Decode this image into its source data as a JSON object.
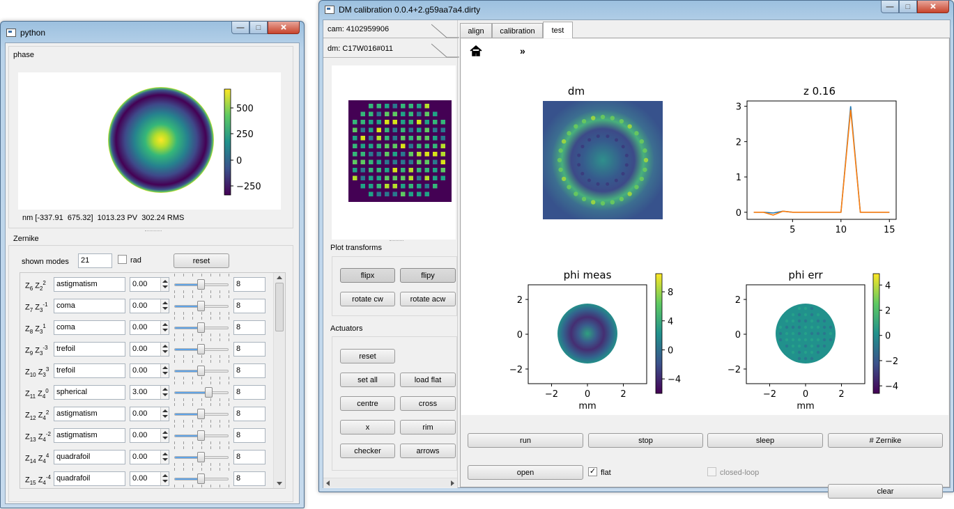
{
  "python_window": {
    "title": "python",
    "phase_group_label": "phase",
    "colorbar_ticks": [
      "500",
      "250",
      "0",
      "−250"
    ],
    "stats_text": "nm [-337.91  675.32]  1013.23 PV  302.24 RMS",
    "zernike_group_label": "Zernike",
    "shown_modes_label": "shown modes",
    "shown_modes_value": "21",
    "rad_label": "rad",
    "reset_label": "reset",
    "modes": [
      {
        "z": "6",
        "n": "2",
        "m": "2",
        "name": "astigmatism",
        "value": "0.00",
        "level": 0.5,
        "max": "8"
      },
      {
        "z": "7",
        "n": "3",
        "m": "-1",
        "name": "coma",
        "value": "0.00",
        "level": 0.5,
        "max": "8"
      },
      {
        "z": "8",
        "n": "3",
        "m": "1",
        "name": "coma",
        "value": "0.00",
        "level": 0.5,
        "max": "8"
      },
      {
        "z": "9",
        "n": "3",
        "m": "-3",
        "name": "trefoil",
        "value": "0.00",
        "level": 0.5,
        "max": "8"
      },
      {
        "z": "10",
        "n": "3",
        "m": "3",
        "name": "trefoil",
        "value": "0.00",
        "level": 0.5,
        "max": "8"
      },
      {
        "z": "11",
        "n": "4",
        "m": "0",
        "name": "spherical",
        "value": "3.00",
        "level": 0.64,
        "max": "8"
      },
      {
        "z": "12",
        "n": "4",
        "m": "2",
        "name": "astigmatism",
        "value": "0.00",
        "level": 0.5,
        "max": "8"
      },
      {
        "z": "13",
        "n": "4",
        "m": "-2",
        "name": "astigmatism",
        "value": "0.00",
        "level": 0.5,
        "max": "8"
      },
      {
        "z": "14",
        "n": "4",
        "m": "4",
        "name": "quadrafoil",
        "value": "0.00",
        "level": 0.5,
        "max": "8"
      },
      {
        "z": "15",
        "n": "4",
        "m": "-4",
        "name": "quadrafoil",
        "value": "0.00",
        "level": 0.5,
        "max": "8"
      }
    ]
  },
  "dm_window": {
    "title": "DM calibration 0.0.4+2.g59aa7a4.dirty",
    "cam_label": "cam: 4102959906",
    "dm_label": "dm: C17W016#011",
    "plot_transforms_label": "Plot transforms",
    "flipx": "flipx",
    "flipy": "flipy",
    "rotate_cw": "rotate cw",
    "rotate_acw": "rotate acw",
    "actuators_label": "Actuators",
    "act_reset": "reset",
    "set_all": "set all",
    "load_flat": "load flat",
    "centre": "centre",
    "cross": "cross",
    "x_btn": "x",
    "rim": "rim",
    "checker": "checker",
    "arrows": "arrows",
    "tabs": [
      "align",
      "calibration",
      "test"
    ],
    "active_tab": "test",
    "toolbar_more": "»",
    "plots": {
      "dm_title": "dm",
      "z_title": "z 0.16",
      "phi_meas_title": "phi meas",
      "phi_err_title": "phi err",
      "mm_label": "mm"
    },
    "run": "run",
    "stop": "stop",
    "sleep": "sleep",
    "zernike_btn": "# Zernike",
    "open": "open",
    "flat_label": "flat",
    "flat_checked": true,
    "closed_loop_label": "closed-loop",
    "clear": "clear"
  },
  "chart_data": [
    {
      "type": "line",
      "title": "z 0.16",
      "x": [
        1,
        2,
        3,
        4,
        5,
        6,
        7,
        8,
        9,
        10,
        11,
        12,
        13,
        14,
        15
      ],
      "series": [
        {
          "values": [
            0,
            0,
            -0.02,
            0.03,
            0,
            0,
            0,
            0,
            0,
            0,
            3.0,
            0,
            0,
            0,
            0
          ],
          "color": "#1f77b4"
        },
        {
          "values": [
            0,
            0,
            -0.08,
            0.03,
            0,
            0,
            0,
            0,
            0,
            0,
            2.9,
            0,
            0,
            0,
            0
          ],
          "color": "#ff7f0e"
        }
      ],
      "xticks": [
        5,
        10,
        15
      ],
      "yticks": [
        0,
        1,
        2,
        3
      ],
      "xlim": [
        0.3,
        15.7
      ],
      "ylim": [
        -0.2,
        3.15
      ]
    },
    {
      "type": "heatmap",
      "title": "phi meas",
      "xlabel": "mm",
      "xticks": [
        -2,
        0,
        2
      ],
      "yticks": [
        -2,
        0,
        2
      ],
      "colorbar_ticks": [
        8,
        4,
        0,
        -4
      ]
    },
    {
      "type": "heatmap",
      "title": "phi err",
      "xlabel": "mm",
      "xticks": [
        -2,
        0,
        2
      ],
      "yticks": [
        -2,
        0,
        2
      ],
      "colorbar_ticks": [
        4,
        2,
        0,
        -2,
        -4
      ]
    }
  ]
}
